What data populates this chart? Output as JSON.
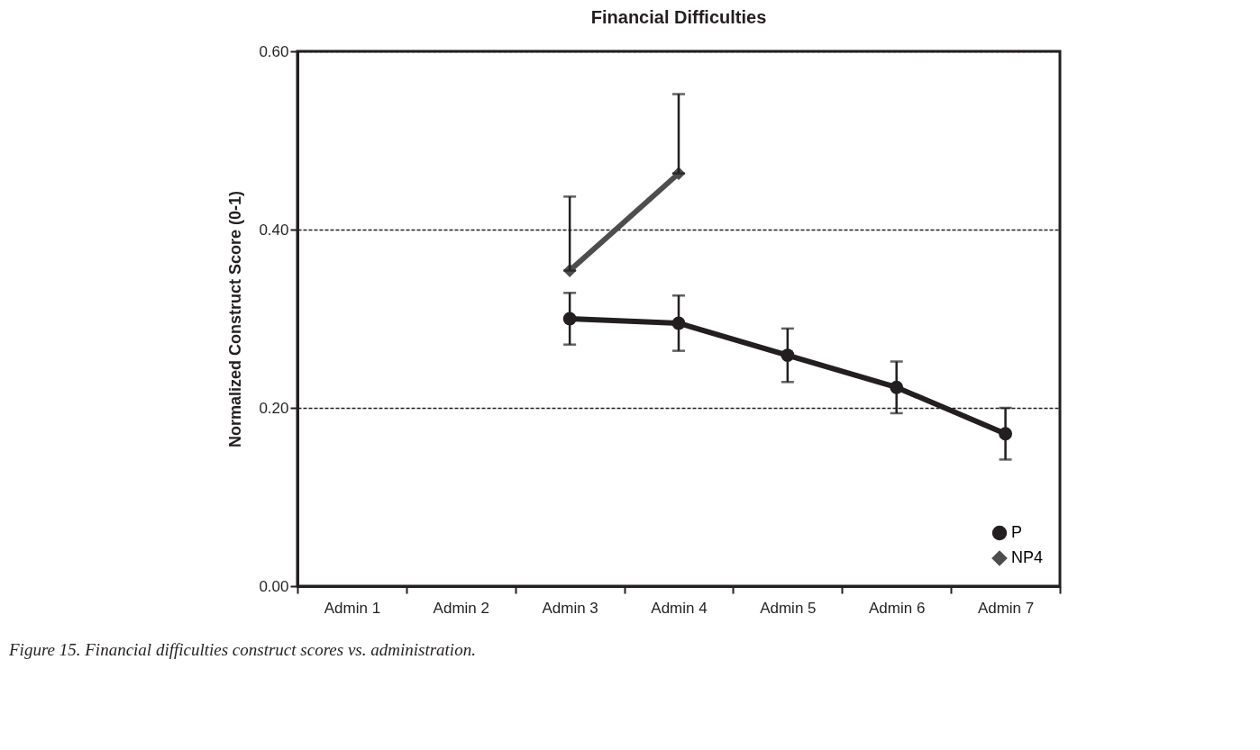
{
  "chart_data": {
    "type": "line",
    "title": "Financial Difficulties",
    "ylabel": "Normalized Construct Score (0-1)",
    "categories": [
      "Admin 1",
      "Admin 2",
      "Admin 3",
      "Admin 4",
      "Admin 5",
      "Admin 6",
      "Admin 7"
    ],
    "series": [
      {
        "name": "P",
        "color": "#231f20",
        "marker": "circle",
        "values": [
          null,
          null,
          0.3,
          0.295,
          0.259,
          0.223,
          0.171
        ],
        "errors": [
          null,
          null,
          0.029,
          0.031,
          0.03,
          0.029,
          0.029
        ]
      },
      {
        "name": "NP4",
        "color": "#4d4d4f",
        "marker": "diamond",
        "values": [
          null,
          null,
          0.354,
          0.463,
          null,
          null,
          null
        ],
        "errors": [
          null,
          null,
          [
            0.354,
            0.437
          ],
          [
            0.463,
            0.552
          ],
          null,
          null,
          null
        ]
      }
    ],
    "ylim": [
      0,
      0.6
    ],
    "yticks": [
      {
        "value": 0,
        "label": "0.00"
      },
      {
        "value": 0.2,
        "label": "0.20"
      },
      {
        "value": 0.4,
        "label": "0.40"
      },
      {
        "value": 0.6,
        "label": "0.60"
      }
    ],
    "grid": "y",
    "legend": "bottom right",
    "line_style": "solid",
    "annotations": [
      "Figure 15. Financial difficulties construct scores vs. administration."
    ]
  }
}
